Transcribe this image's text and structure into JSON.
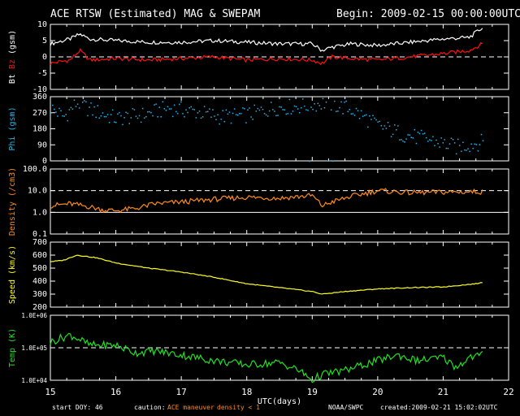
{
  "header": {
    "title": "ACE RTSW (Estimated) MAG & SWEPAM",
    "begin": "Begin: 2009-02-15 00:00:00UTC"
  },
  "footer": {
    "start_doy": "start DOY:  46",
    "caution_label": "caution:",
    "caution_ace": "ACE maneuver",
    "caution_density": "density < 1",
    "noaa": "NOAA/SWPC",
    "created": "created:2009-02-21 15:02:02UTC"
  },
  "colors": {
    "bt": "#ffffff",
    "bz": "#ff1010",
    "phi": "#1fb8f0",
    "density": "#ff8c1a",
    "speed": "#ffff20",
    "temp": "#22e022",
    "axis": "#ffffff",
    "background": "#000000"
  },
  "chart_data": [
    {
      "type": "line",
      "title": "",
      "xlabel": "",
      "ylabel": [
        "Bt",
        "Bz",
        "(gsm)"
      ],
      "ylim": [
        -10,
        10
      ],
      "yticks": [
        10,
        5,
        0,
        -5,
        -10
      ],
      "dashed_reference": [
        0
      ],
      "series": [
        {
          "name": "Bt",
          "x": [
            15.0,
            15.3,
            15.45,
            15.6,
            16.0,
            16.5,
            17.0,
            17.5,
            18.0,
            18.5,
            19.0,
            19.15,
            19.3,
            19.6,
            20.0,
            20.5,
            21.0,
            21.4,
            21.6
          ],
          "y": [
            4,
            5.5,
            7,
            5.5,
            5,
            4.5,
            4.5,
            5,
            4.5,
            4,
            4,
            2,
            3,
            4,
            3.5,
            4.5,
            5.5,
            6,
            9
          ]
        },
        {
          "name": "Bz",
          "x": [
            15.0,
            15.3,
            15.45,
            15.6,
            16.0,
            16.5,
            17.0,
            17.5,
            18.0,
            18.5,
            19.0,
            19.15,
            19.3,
            19.6,
            20.0,
            20.5,
            21.0,
            21.4,
            21.6
          ],
          "y": [
            -2,
            -1,
            2,
            -1,
            -0.5,
            -1,
            -0.5,
            0,
            -1,
            -0.5,
            -1,
            -2,
            0,
            -0.5,
            -1,
            0,
            1,
            2,
            4
          ]
        }
      ]
    },
    {
      "type": "scatter",
      "title": "",
      "xlabel": "",
      "ylabel": "Phi (gsm)",
      "ylim": [
        0,
        360
      ],
      "yticks": [
        360,
        270,
        180,
        90,
        0
      ],
      "series": [
        {
          "name": "Phi",
          "x": [
            15.0,
            15.2,
            15.4,
            15.6,
            16.0,
            16.4,
            16.8,
            17.2,
            17.6,
            18.0,
            18.4,
            18.8,
            19.2,
            19.6,
            20.0,
            20.4,
            20.8,
            21.2,
            21.6
          ],
          "y": [
            300,
            250,
            330,
            290,
            240,
            260,
            300,
            280,
            250,
            260,
            300,
            310,
            330,
            290,
            200,
            150,
            120,
            80,
            110
          ]
        }
      ]
    },
    {
      "type": "line",
      "title": "",
      "xlabel": "",
      "ylabel": "Density (/cm3)",
      "yscale": "log",
      "ylim": [
        0.1,
        100
      ],
      "yticks": [
        "100.0",
        "10.0",
        "1.0",
        "0.1"
      ],
      "dashed_reference": [
        10
      ],
      "solid_reference": [
        1
      ],
      "series": [
        {
          "name": "Density",
          "x": [
            15.0,
            15.3,
            15.6,
            15.8,
            16.0,
            16.3,
            16.6,
            17.0,
            17.5,
            18.0,
            18.5,
            19.0,
            19.15,
            19.3,
            19.6,
            20.0,
            20.5,
            21.0,
            21.6
          ],
          "y": [
            2.0,
            2.5,
            1.8,
            1.3,
            1.2,
            1.5,
            2.5,
            3.0,
            4.0,
            5.0,
            4.5,
            6.0,
            2.0,
            3.0,
            5.5,
            10.0,
            8.0,
            8.5,
            9.0
          ]
        }
      ]
    },
    {
      "type": "line",
      "title": "",
      "xlabel": "",
      "ylabel": "Speed (km/s)",
      "ylim": [
        200,
        700
      ],
      "yticks": [
        700,
        600,
        500,
        400,
        300,
        200
      ],
      "series": [
        {
          "name": "Speed",
          "x": [
            15.0,
            15.2,
            15.4,
            15.7,
            16.0,
            16.5,
            17.0,
            17.5,
            18.0,
            18.5,
            19.0,
            19.15,
            19.5,
            20.0,
            20.5,
            21.0,
            21.5,
            21.6
          ],
          "y": [
            550,
            560,
            600,
            580,
            540,
            500,
            470,
            430,
            380,
            350,
            320,
            300,
            320,
            340,
            350,
            355,
            380,
            390
          ]
        }
      ]
    },
    {
      "type": "line",
      "title": "",
      "xlabel": "UTC(days)",
      "ylabel": "Temp (K)",
      "yscale": "log",
      "ylim": [
        10000,
        1000000
      ],
      "yticks": [
        "1.0E+06",
        "1.0E+05",
        "1.0E+04"
      ],
      "dashed_reference": [
        100000
      ],
      "xlim": [
        15,
        22
      ],
      "xticks": [
        15,
        16,
        17,
        18,
        19,
        20,
        21,
        22
      ],
      "series": [
        {
          "name": "Temp",
          "x": [
            15.0,
            15.3,
            15.45,
            15.6,
            16.0,
            16.3,
            16.6,
            17.0,
            17.5,
            18.0,
            18.5,
            18.8,
            19.0,
            19.15,
            19.5,
            19.9,
            20.3,
            20.6,
            21.0,
            21.2,
            21.4,
            21.6
          ],
          "y": [
            150000,
            250000,
            180000,
            120000,
            120000,
            70000,
            80000,
            60000,
            40000,
            30000,
            35000,
            20000,
            10000,
            15000,
            20000,
            35000,
            60000,
            40000,
            50000,
            25000,
            50000,
            60000
          ]
        }
      ]
    }
  ]
}
